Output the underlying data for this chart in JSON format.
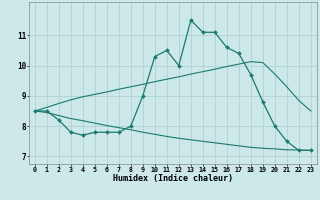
{
  "xlabel": "Humidex (Indice chaleur)",
  "bg_color": "#cce8e8",
  "line_color": "#1a7a6e",
  "grid_color": "#aacece",
  "x_values": [
    0,
    1,
    2,
    3,
    4,
    5,
    6,
    7,
    8,
    9,
    10,
    11,
    12,
    13,
    14,
    15,
    16,
    17,
    18,
    19,
    20,
    21,
    22,
    23
  ],
  "series_main": [
    8.5,
    8.5,
    8.2,
    7.8,
    7.7,
    7.8,
    7.8,
    7.8,
    8.0,
    9.0,
    10.3,
    10.5,
    10.0,
    11.5,
    11.1,
    11.1,
    10.6,
    10.4,
    9.7,
    8.8,
    8.0,
    7.5,
    7.2,
    7.2
  ],
  "series_upper": [
    8.5,
    8.62,
    8.75,
    8.87,
    8.97,
    9.05,
    9.13,
    9.22,
    9.3,
    9.38,
    9.47,
    9.55,
    9.63,
    9.72,
    9.8,
    9.88,
    9.97,
    10.05,
    10.13,
    10.1,
    9.72,
    9.3,
    8.85,
    8.5
  ],
  "series_lower": [
    8.5,
    8.45,
    8.35,
    8.25,
    8.18,
    8.1,
    8.02,
    7.95,
    7.88,
    7.8,
    7.73,
    7.66,
    7.6,
    7.55,
    7.5,
    7.45,
    7.4,
    7.35,
    7.3,
    7.27,
    7.25,
    7.22,
    7.21,
    7.2
  ],
  "ylim": [
    6.75,
    12.1
  ],
  "xlim": [
    -0.5,
    23.5
  ],
  "yticks": [
    7,
    8,
    9,
    10,
    11
  ],
  "xticks": [
    0,
    1,
    2,
    3,
    4,
    5,
    6,
    7,
    8,
    9,
    10,
    11,
    12,
    13,
    14,
    15,
    16,
    17,
    18,
    19,
    20,
    21,
    22,
    23
  ]
}
